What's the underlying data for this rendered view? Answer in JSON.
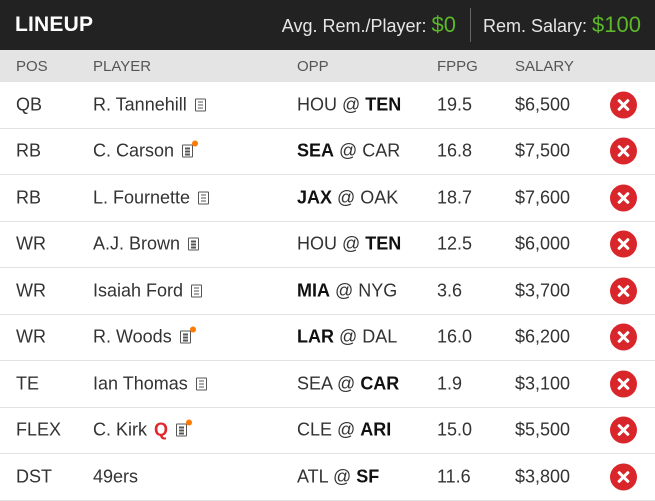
{
  "header": {
    "title": "LINEUP",
    "avg_label": "Avg. Rem./Player:",
    "avg_value": "$0",
    "rem_label": "Rem. Salary:",
    "rem_value": "$100"
  },
  "columns": {
    "pos": "POS",
    "player": "PLAYER",
    "opp": "OPP",
    "fppg": "FPPG",
    "salary": "SALARY"
  },
  "rows": [
    {
      "pos": "QB",
      "player": "R. Tannehill",
      "news": true,
      "news_alert": false,
      "status": "",
      "opp_pre": "HOU @ ",
      "opp_bold": "TEN",
      "opp_post": "",
      "fppg": "19.5",
      "salary": "$6,500"
    },
    {
      "pos": "RB",
      "player": "C. Carson",
      "news": true,
      "news_alert": true,
      "status": "",
      "opp_pre": "",
      "opp_bold": "SEA",
      "opp_post": " @ CAR",
      "fppg": "16.8",
      "salary": "$7,500"
    },
    {
      "pos": "RB",
      "player": "L. Fournette",
      "news": true,
      "news_alert": false,
      "status": "",
      "opp_pre": "",
      "opp_bold": "JAX",
      "opp_post": " @ OAK",
      "fppg": "18.7",
      "salary": "$7,600"
    },
    {
      "pos": "WR",
      "player": "A.J. Brown",
      "news": true,
      "news_alert": false,
      "status": "",
      "opp_pre": "HOU @ ",
      "opp_bold": "TEN",
      "opp_post": "",
      "fppg": "12.5",
      "salary": "$6,000"
    },
    {
      "pos": "WR",
      "player": "Isaiah Ford",
      "news": true,
      "news_alert": false,
      "status": "",
      "opp_pre": "",
      "opp_bold": "MIA",
      "opp_post": " @ NYG",
      "fppg": "3.6",
      "salary": "$3,700"
    },
    {
      "pos": "WR",
      "player": "R. Woods",
      "news": true,
      "news_alert": true,
      "status": "",
      "opp_pre": "",
      "opp_bold": "LAR",
      "opp_post": " @ DAL",
      "fppg": "16.0",
      "salary": "$6,200"
    },
    {
      "pos": "TE",
      "player": "Ian Thomas",
      "news": true,
      "news_alert": false,
      "status": "",
      "opp_pre": "SEA @ ",
      "opp_bold": "CAR",
      "opp_post": "",
      "fppg": "1.9",
      "salary": "$3,100"
    },
    {
      "pos": "FLEX",
      "player": "C. Kirk",
      "news": true,
      "news_alert": true,
      "status": "Q",
      "opp_pre": "CLE @ ",
      "opp_bold": "ARI",
      "opp_post": "",
      "fppg": "15.0",
      "salary": "$5,500"
    },
    {
      "pos": "DST",
      "player": "49ers",
      "news": false,
      "news_alert": false,
      "status": "",
      "opp_pre": "ATL @ ",
      "opp_bold": "SF",
      "opp_post": "",
      "fppg": "11.6",
      "salary": "$3,800"
    }
  ],
  "icons": {
    "news": "news-icon",
    "remove": "remove-player-icon"
  },
  "colors": {
    "header_bg": "#222222",
    "money_green": "#5cb82a",
    "remove_red": "#d9262b",
    "alert_orange": "#ff7a00"
  }
}
